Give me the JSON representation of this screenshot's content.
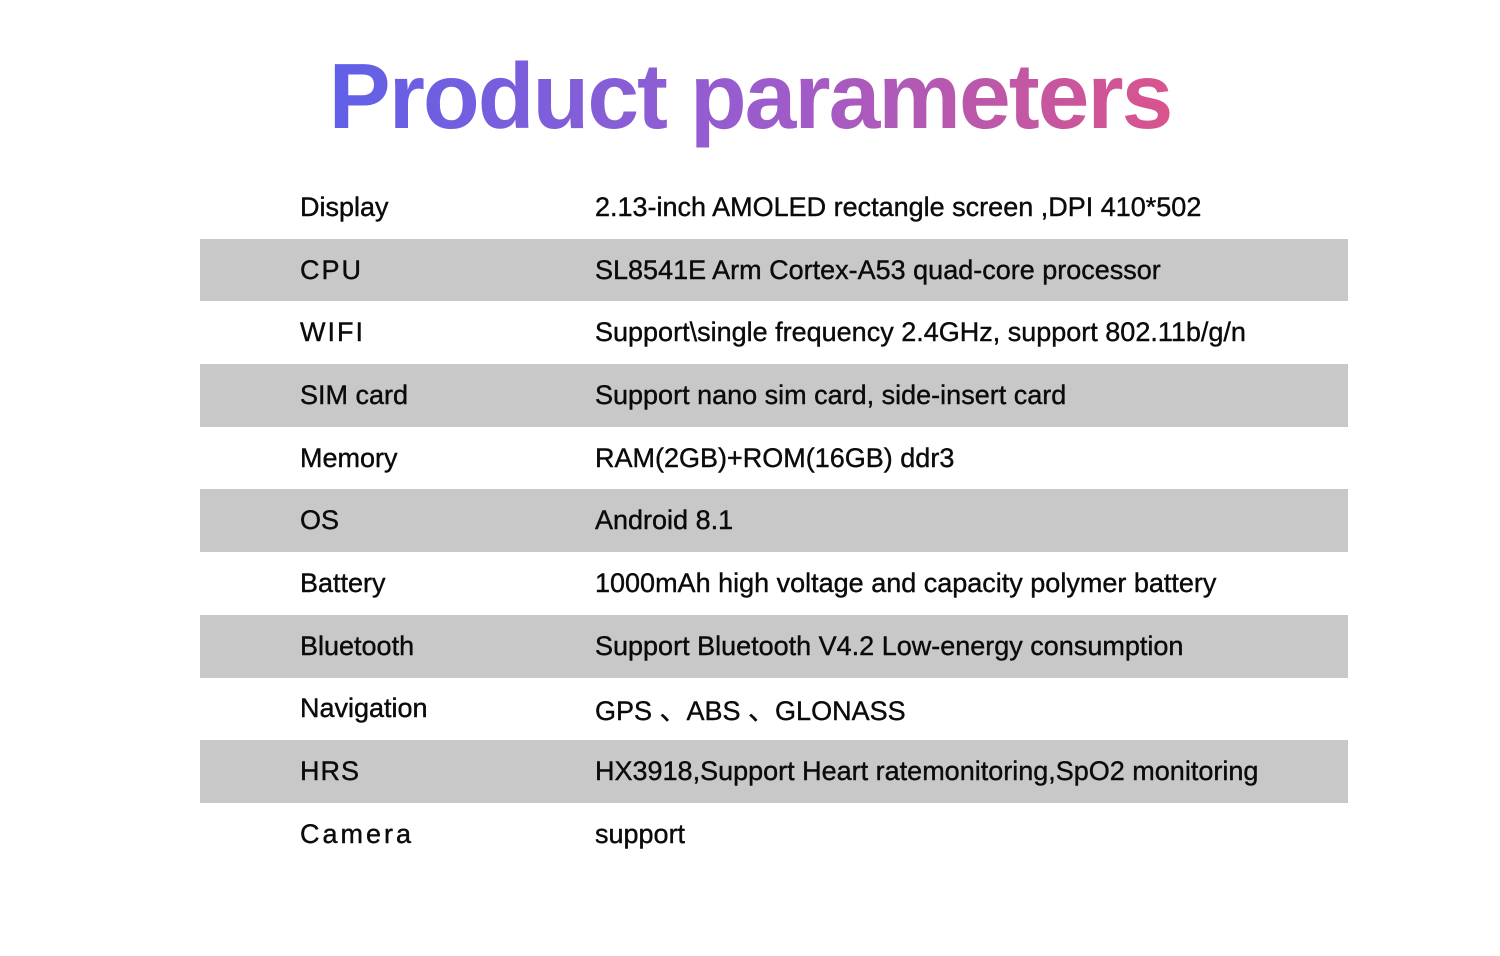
{
  "title": "Product parameters",
  "colors": {
    "background": "#ffffff",
    "row_shade": "#c8c8c8",
    "text": "#0b0b0b",
    "title_gradient_start": "#6060e8",
    "title_gradient_mid": "#9c5ccc",
    "title_gradient_end": "#d9548c"
  },
  "table": {
    "rows": [
      {
        "label": "Display",
        "value": "2.13-inch AMOLED rectangle screen ,DPI 410*502",
        "shaded": false
      },
      {
        "label": "CPU",
        "value": "SL8541E Arm Cortex-A53 quad-core processor",
        "shaded": true
      },
      {
        "label": "WIFI",
        "value": "Support\\single frequency 2.4GHz, support 802.11b/g/n",
        "shaded": false
      },
      {
        "label": "SIM card",
        "value": "Support nano sim card, side-insert card",
        "shaded": true
      },
      {
        "label": "Memory",
        "value": "RAM(2GB)+ROM(16GB) ddr3",
        "shaded": false
      },
      {
        "label": "OS",
        "value": "Android 8.1",
        "shaded": true
      },
      {
        "label": "Battery",
        "value": "1000mAh high voltage and capacity polymer battery",
        "shaded": false
      },
      {
        "label": "Bluetooth",
        "value": "Support Bluetooth V4.2 Low-energy consumption",
        "shaded": true
      },
      {
        "label": "Navigation",
        "value": "GPS 、ABS 、GLONASS",
        "shaded": false
      },
      {
        "label": "HRS",
        "value": "HX3918,Support Heart ratemonitoring,SpO2 monitoring",
        "shaded": true
      },
      {
        "label": "Camera",
        "value": "support",
        "shaded": false
      }
    ]
  }
}
